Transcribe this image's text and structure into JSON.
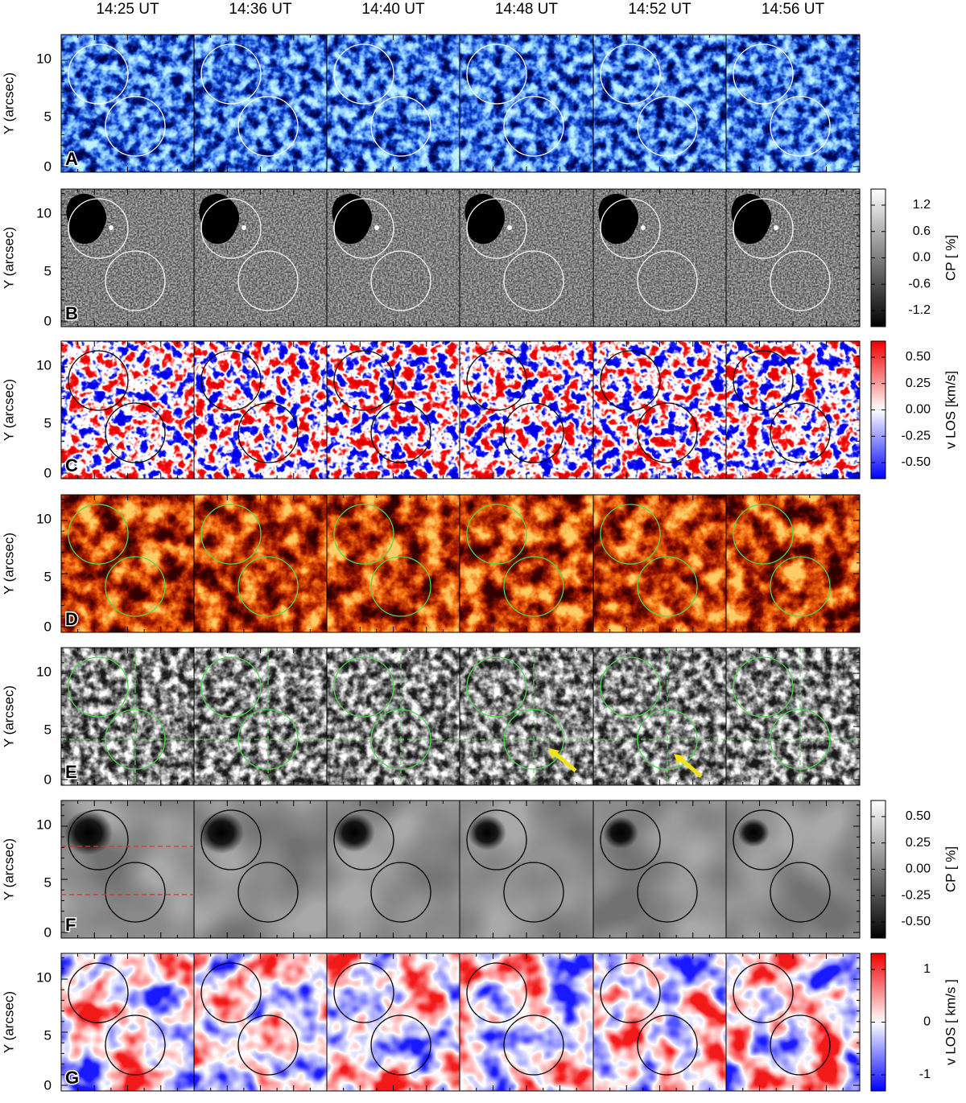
{
  "columns": [
    "14:25 UT",
    "14:36 UT",
    "14:40 UT",
    "14:48 UT",
    "14:52 UT",
    "14:56 UT"
  ],
  "rows": [
    {
      "letter": "A",
      "y_label": "Y (arcsec)",
      "yticks": [
        "10",
        "5",
        "0"
      ]
    },
    {
      "letter": "B",
      "y_label": "Y (arcsec)",
      "yticks": [
        "10",
        "5",
        "0"
      ],
      "colorbar": {
        "label": "CP [ %]",
        "ticks": [
          "1.2",
          "0.6",
          "0.0",
          "-0.6",
          "-1.2"
        ]
      }
    },
    {
      "letter": "C",
      "y_label": "Y (arcsec)",
      "yticks": [
        "10",
        "5",
        "0"
      ],
      "colorbar": {
        "label": "v LOS [km/s]",
        "ticks": [
          "0.50",
          "0.25",
          "0.00",
          "-0.25",
          "-0.50"
        ]
      }
    },
    {
      "letter": "D",
      "y_label": "Y (arcsec)",
      "yticks": [
        "10",
        "5",
        "0"
      ]
    },
    {
      "letter": "E",
      "y_label": "Y (arcsec)",
      "yticks": [
        "10",
        "5",
        "0"
      ]
    },
    {
      "letter": "F",
      "y_label": "Y (arcsec)",
      "yticks": [
        "10",
        "5",
        "0"
      ],
      "colorbar": {
        "label": "CP [ %]",
        "ticks": [
          "0.50",
          "0.25",
          "0.00",
          "-0.25",
          "-0.50"
        ]
      }
    },
    {
      "letter": "G",
      "y_label": "Y (arcsec)",
      "yticks": [
        "10",
        "5",
        "0"
      ],
      "colorbar": {
        "label": "v LOS [ km/s ]",
        "ticks": [
          "1",
          "0",
          "-1"
        ]
      }
    }
  ]
}
